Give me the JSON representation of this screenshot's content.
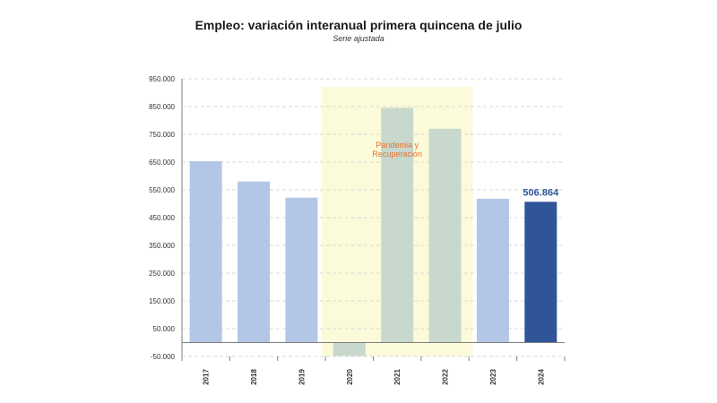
{
  "chart_data": {
    "type": "bar",
    "title": "Empleo: variación interanual primera quincena de julio",
    "subtitle": "Serie ajustada",
    "categories": [
      "2017",
      "2018",
      "2019",
      "2020",
      "2021",
      "2022",
      "2023",
      "2024"
    ],
    "values": [
      653000,
      580000,
      522000,
      -48000,
      845000,
      770000,
      518000,
      506864
    ],
    "value_labels": [
      "",
      "",
      "",
      "",
      "",
      "",
      "",
      "506.864"
    ],
    "ylim": [
      -50000,
      950000
    ],
    "yticks": [
      -50000,
      50000,
      150000,
      250000,
      350000,
      450000,
      550000,
      650000,
      750000,
      850000,
      950000
    ],
    "ytick_labels": [
      "-50.000",
      "50.000",
      "150.000",
      "250.000",
      "350.000",
      "450.000",
      "550.000",
      "650.000",
      "750.000",
      "850.000",
      "950.000"
    ],
    "grid": true,
    "highlight_range": {
      "from": "2020",
      "to": "2022",
      "label_lines": [
        "Pandemia y",
        "Recuperación"
      ],
      "color": "#fbfbd9"
    },
    "colors": {
      "normal": "#b4c6e7",
      "pandemic": "#c9d8cd",
      "latest": "#2f5497",
      "grid": "#d9d9d9",
      "axis": "#7f7f7f"
    }
  }
}
